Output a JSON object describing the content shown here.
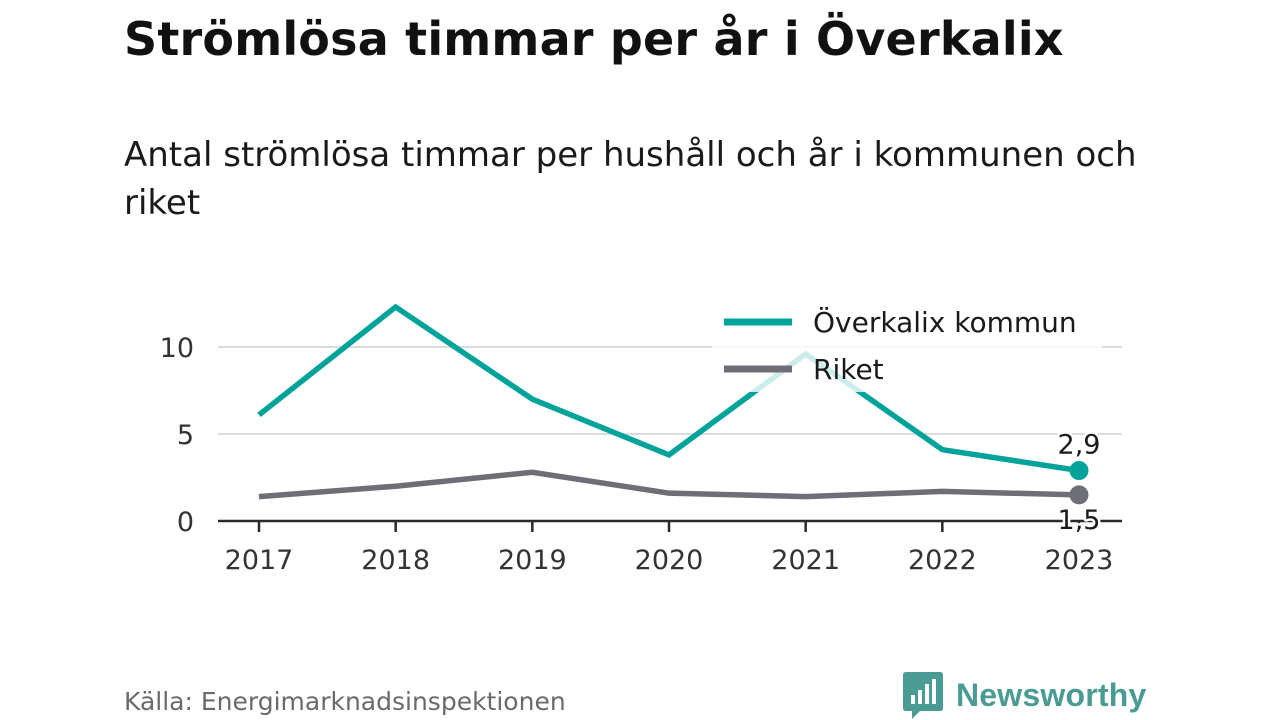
{
  "header": {
    "title": "Strömlösa timmar per år i Överkalix",
    "subtitle": "Antal strömlösa timmar per hushåll och år i kommunen och riket"
  },
  "footer": {
    "source": "Källa: Energimarknadsinspektionen",
    "brand": "Newsworthy",
    "brand_icon": "newsworthy-logo-icon"
  },
  "chart_data": {
    "type": "line",
    "x": [
      "2017",
      "2018",
      "2019",
      "2020",
      "2021",
      "2022",
      "2023"
    ],
    "series": [
      {
        "name": "Överkalix kommun",
        "color": "#00a39a",
        "values": [
          6.1,
          12.3,
          7.0,
          3.8,
          9.6,
          4.1,
          2.9
        ],
        "end_label": "2,9"
      },
      {
        "name": "Riket",
        "color": "#6e6e76",
        "values": [
          1.4,
          2.0,
          2.8,
          1.6,
          1.4,
          1.7,
          1.5
        ],
        "end_label": "1,5"
      }
    ],
    "y_ticks": [
      0,
      5,
      10
    ],
    "ylim": [
      0,
      12.5
    ],
    "grid": true,
    "legend_position": "top-right"
  }
}
